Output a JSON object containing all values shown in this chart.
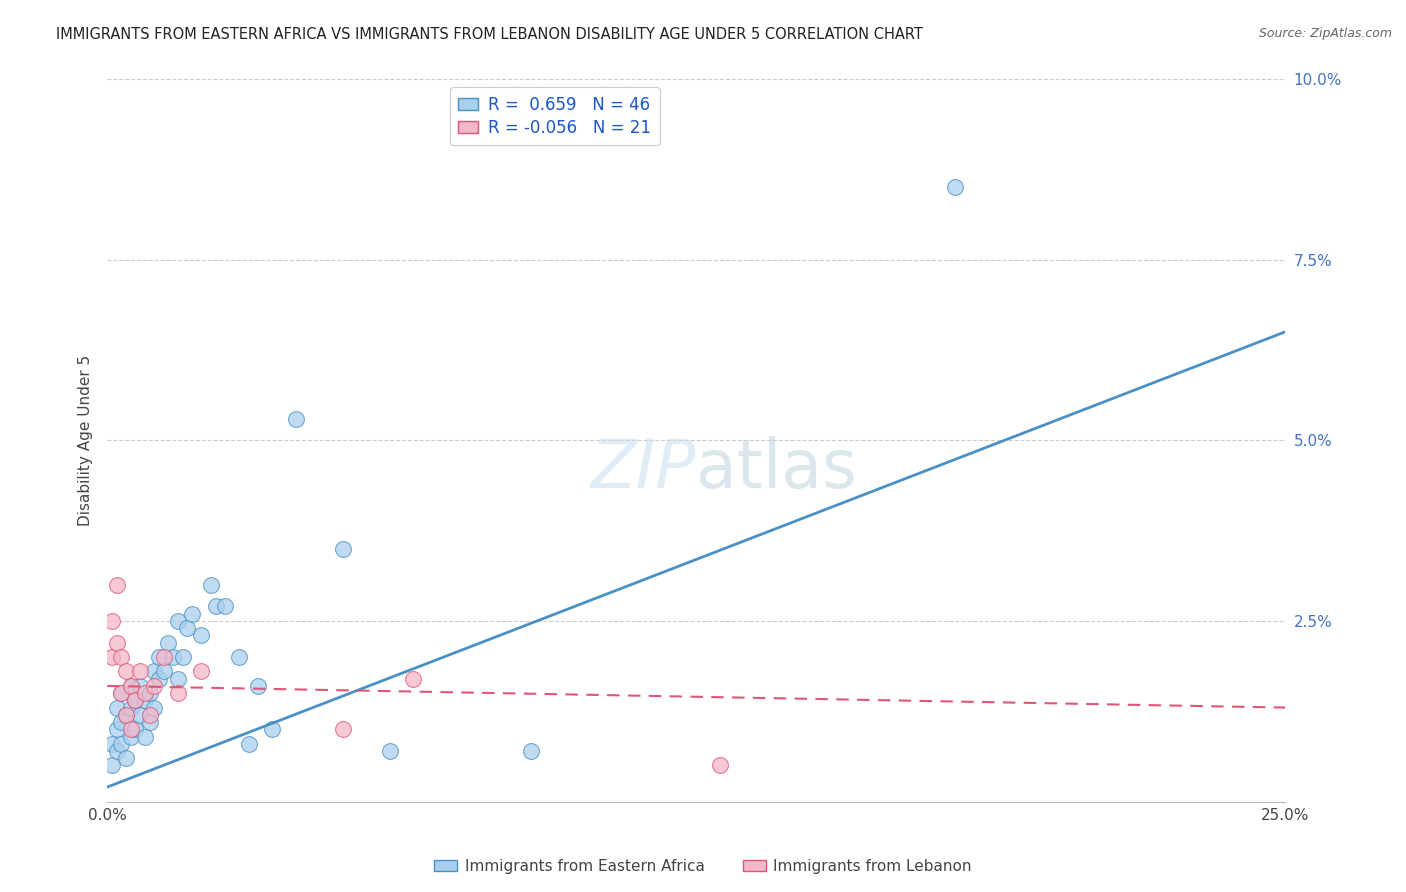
{
  "title": "IMMIGRANTS FROM EASTERN AFRICA VS IMMIGRANTS FROM LEBANON DISABILITY AGE UNDER 5 CORRELATION CHART",
  "source": "Source: ZipAtlas.com",
  "ylabel": "Disability Age Under 5",
  "legend_label1": "Immigrants from Eastern Africa",
  "legend_label2": "Immigrants from Lebanon",
  "r1": 0.659,
  "n1": 46,
  "r2": -0.056,
  "n2": 21,
  "xlim": [
    0,
    0.25
  ],
  "ylim": [
    0,
    0.1
  ],
  "xticks": [
    0.0,
    0.05,
    0.1,
    0.15,
    0.2,
    0.25
  ],
  "yticks": [
    0.0,
    0.025,
    0.05,
    0.075,
    0.1
  ],
  "xtick_labels": [
    "0.0%",
    "",
    "",
    "",
    "",
    "25.0%"
  ],
  "ytick_labels": [
    "",
    "2.5%",
    "5.0%",
    "7.5%",
    "10.0%"
  ],
  "color_blue": "#A8D0ED",
  "color_pink": "#F4B8C8",
  "line_blue": "#4A90C4",
  "line_pink": "#E05575",
  "background_color": "#FFFFFF",
  "blue_points_x": [
    0.001,
    0.001,
    0.002,
    0.002,
    0.002,
    0.003,
    0.003,
    0.003,
    0.004,
    0.004,
    0.005,
    0.005,
    0.005,
    0.006,
    0.006,
    0.007,
    0.007,
    0.008,
    0.008,
    0.009,
    0.009,
    0.01,
    0.01,
    0.011,
    0.011,
    0.012,
    0.013,
    0.014,
    0.015,
    0.015,
    0.016,
    0.017,
    0.018,
    0.02,
    0.022,
    0.023,
    0.025,
    0.028,
    0.03,
    0.032,
    0.035,
    0.04,
    0.05,
    0.06,
    0.09,
    0.18
  ],
  "blue_points_y": [
    0.005,
    0.008,
    0.007,
    0.01,
    0.013,
    0.008,
    0.011,
    0.015,
    0.006,
    0.012,
    0.009,
    0.013,
    0.016,
    0.01,
    0.014,
    0.012,
    0.016,
    0.009,
    0.014,
    0.011,
    0.015,
    0.013,
    0.018,
    0.017,
    0.02,
    0.018,
    0.022,
    0.02,
    0.025,
    0.017,
    0.02,
    0.024,
    0.026,
    0.023,
    0.03,
    0.027,
    0.027,
    0.02,
    0.008,
    0.016,
    0.01,
    0.053,
    0.035,
    0.007,
    0.007,
    0.085
  ],
  "pink_points_x": [
    0.001,
    0.001,
    0.002,
    0.002,
    0.003,
    0.003,
    0.004,
    0.004,
    0.005,
    0.005,
    0.006,
    0.007,
    0.008,
    0.009,
    0.01,
    0.012,
    0.015,
    0.02,
    0.05,
    0.065,
    0.13
  ],
  "pink_points_y": [
    0.025,
    0.02,
    0.022,
    0.03,
    0.015,
    0.02,
    0.012,
    0.018,
    0.01,
    0.016,
    0.014,
    0.018,
    0.015,
    0.012,
    0.016,
    0.02,
    0.015,
    0.018,
    0.01,
    0.017,
    0.005
  ],
  "blue_line_x0": 0.0,
  "blue_line_y0": 0.002,
  "blue_line_x1": 0.25,
  "blue_line_y1": 0.065,
  "pink_line_x0": 0.0,
  "pink_line_y0": 0.016,
  "pink_line_x1": 0.25,
  "pink_line_y1": 0.013
}
